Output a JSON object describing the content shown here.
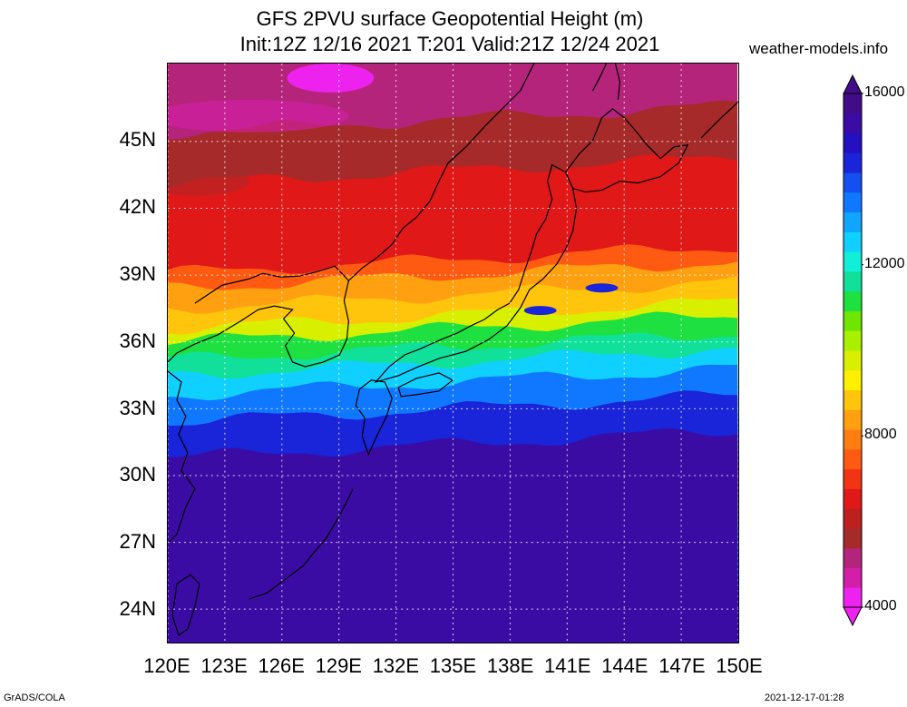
{
  "title": {
    "line1": "GFS 2PVU surface Geopotential Height (m)",
    "line2": "Init:12Z 12/16 2021 T:201 Valid:21Z 12/24 2021"
  },
  "source": "weather-models.info",
  "map": {
    "projection": "lat-lon",
    "lon_range": [
      120,
      150
    ],
    "lat_range": [
      22.5,
      48.5
    ],
    "lat_labels": [
      "45N",
      "42N",
      "39N",
      "36N",
      "33N",
      "30N",
      "27N",
      "24N"
    ],
    "lon_labels": [
      "120E",
      "123E",
      "126E",
      "129E",
      "132E",
      "135E",
      "138E",
      "141E",
      "144E",
      "147E",
      "150E"
    ],
    "gridlines": "dotted"
  },
  "colorbar": {
    "min": 4000,
    "max": 16000,
    "labels": [
      "16000",
      "12000",
      "8000",
      "4000"
    ],
    "colors_low_to_high": [
      "#ee22ee",
      "#d21ea8",
      "#b4247a",
      "#a62a2a",
      "#be2020",
      "#e01818",
      "#f23414",
      "#ff5a12",
      "#ff7c10",
      "#ffa010",
      "#ffc40c",
      "#fff000",
      "#d8f000",
      "#a8f000",
      "#6ee600",
      "#1ee040",
      "#10e09a",
      "#10f0d8",
      "#10d0ff",
      "#10a6ff",
      "#1078ff",
      "#1450f0",
      "#1a24d8",
      "#2410c0",
      "#3a0ca4",
      "#400c88"
    ]
  },
  "field_bands": [
    {
      "lat_north": 48.5,
      "color": "#b4247a"
    },
    {
      "lat_north": 45.8,
      "color": "#a62a2a"
    },
    {
      "lat_north": 43.5,
      "color": "#e01818"
    },
    {
      "lat_north": 39.5,
      "color": "#ff5a12"
    },
    {
      "lat_north": 38.8,
      "color": "#ffa010"
    },
    {
      "lat_north": 37.9,
      "color": "#ffc40c"
    },
    {
      "lat_north": 37.0,
      "color": "#d8f000"
    },
    {
      "lat_north": 36.4,
      "color": "#1ee040"
    },
    {
      "lat_north": 35.6,
      "color": "#10e09a"
    },
    {
      "lat_north": 34.9,
      "color": "#10d0ff"
    },
    {
      "lat_north": 34.0,
      "color": "#1078ff"
    },
    {
      "lat_north": 32.8,
      "color": "#1a24d8"
    },
    {
      "lat_north": 31.2,
      "color": "#3a0ca4"
    }
  ],
  "footer": {
    "left": "GrADS/COLA",
    "right": "2021-12-17-01:28"
  }
}
